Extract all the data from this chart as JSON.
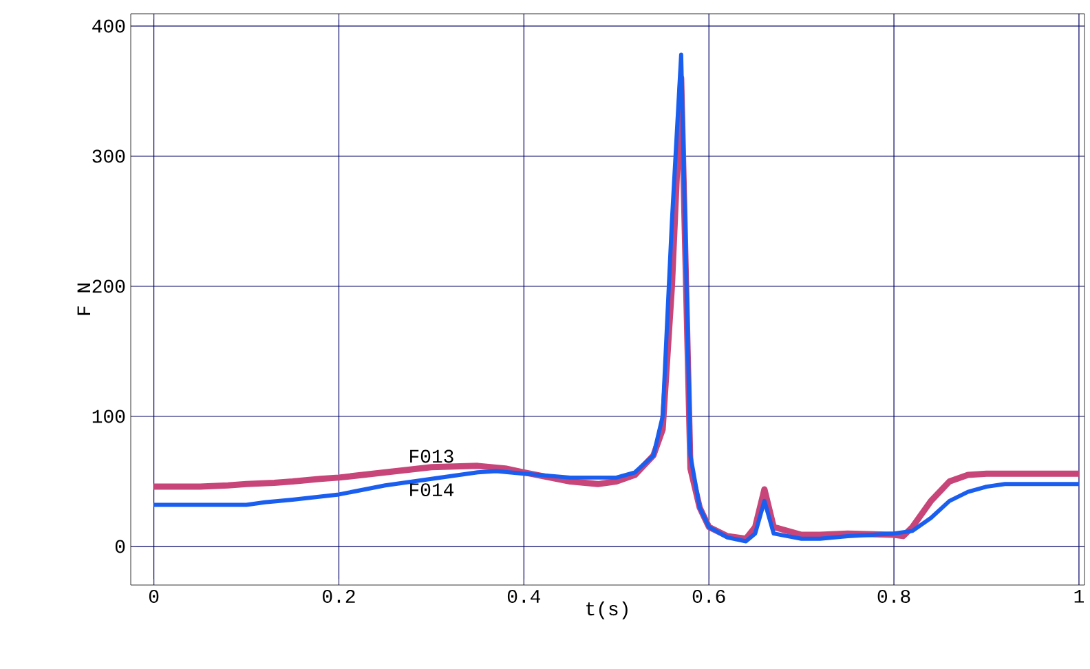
{
  "chart_data": {
    "type": "line",
    "xlabel": "t(s)",
    "ylabel": "F N",
    "xlim": [
      -0.025,
      1.006
    ],
    "ylim": [
      -29.6,
      409.5
    ],
    "xticks": [
      {
        "value": 0,
        "label": "0"
      },
      {
        "value": 0.2,
        "label": "0.2"
      },
      {
        "value": 0.4,
        "label": "0.4"
      },
      {
        "value": 0.6,
        "label": "0.6"
      },
      {
        "value": 0.8,
        "label": "0.8"
      },
      {
        "value": 1,
        "label": "1"
      }
    ],
    "yticks": [
      0,
      100,
      200,
      300,
      400
    ],
    "grid": true,
    "legend": false,
    "marker": "none",
    "line_style": "solid",
    "series": [
      {
        "name": "F013",
        "color": "#c8457a",
        "x": [
          0,
          0.05,
          0.08,
          0.1,
          0.13,
          0.15,
          0.18,
          0.2,
          0.25,
          0.3,
          0.35,
          0.38,
          0.4,
          0.45,
          0.48,
          0.5,
          0.52,
          0.54,
          0.55,
          0.56,
          0.57,
          0.58,
          0.59,
          0.6,
          0.62,
          0.64,
          0.65,
          0.66,
          0.67,
          0.7,
          0.72,
          0.75,
          0.8,
          0.81,
          0.82,
          0.84,
          0.86,
          0.88,
          0.9,
          1
        ],
        "values": [
          46,
          46,
          47,
          48,
          49,
          50,
          52,
          53,
          57,
          61,
          62,
          60,
          57,
          50,
          48,
          50,
          55,
          70,
          90,
          200,
          360,
          60,
          30,
          15,
          8,
          6,
          15,
          44,
          15,
          9,
          9,
          10,
          9,
          8,
          15,
          35,
          50,
          55,
          56,
          56
        ]
      },
      {
        "name": "F014",
        "color": "#1a5ef0",
        "x": [
          0,
          0.1,
          0.12,
          0.15,
          0.2,
          0.25,
          0.3,
          0.35,
          0.37,
          0.4,
          0.45,
          0.5,
          0.52,
          0.54,
          0.55,
          0.56,
          0.57,
          0.58,
          0.59,
          0.6,
          0.62,
          0.64,
          0.65,
          0.66,
          0.67,
          0.7,
          0.72,
          0.75,
          0.8,
          0.82,
          0.84,
          0.86,
          0.88,
          0.9,
          0.92,
          1
        ],
        "values": [
          32,
          32,
          34,
          36,
          40,
          47,
          52,
          57,
          58,
          56,
          53,
          53,
          57,
          70,
          100,
          250,
          378,
          70,
          30,
          15,
          7,
          4,
          10,
          35,
          10,
          6,
          6,
          8,
          10,
          12,
          22,
          35,
          42,
          46,
          48,
          48
        ]
      }
    ]
  }
}
